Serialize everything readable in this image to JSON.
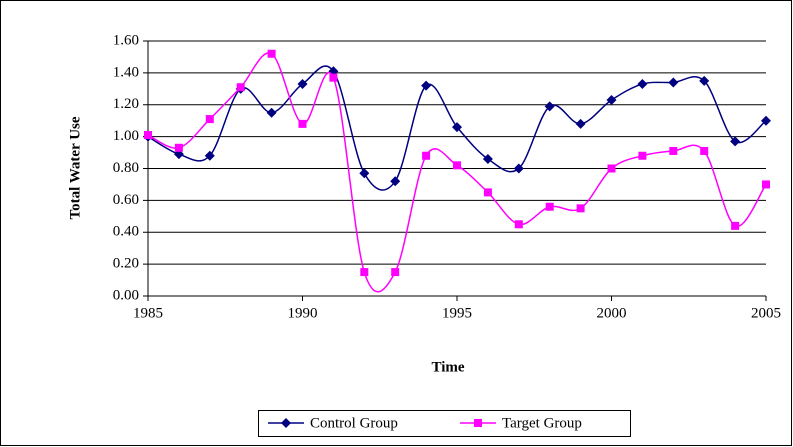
{
  "chart_data": {
    "type": "line",
    "x_label": "Time",
    "y_label": "Total Water Use",
    "x": [
      1985,
      1986,
      1987,
      1988,
      1989,
      1990,
      1991,
      1992,
      1993,
      1994,
      1995,
      1996,
      1997,
      1998,
      1999,
      2000,
      2001,
      2002,
      2003,
      2004,
      2005
    ],
    "series": [
      {
        "name": "Control Group",
        "color": "#000080",
        "marker": "diamond",
        "values": [
          1.0,
          0.89,
          0.88,
          1.3,
          1.15,
          1.33,
          1.41,
          0.77,
          0.72,
          1.32,
          1.06,
          0.86,
          0.8,
          1.19,
          1.08,
          1.23,
          1.33,
          1.34,
          1.35,
          0.97,
          1.1
        ]
      },
      {
        "name": "Target Group",
        "color": "#ff00ff",
        "marker": "square",
        "values": [
          1.01,
          0.93,
          1.11,
          1.31,
          1.52,
          1.08,
          1.37,
          0.15,
          0.15,
          0.88,
          0.82,
          0.65,
          0.45,
          0.56,
          0.55,
          0.8,
          0.88,
          0.91,
          0.91,
          0.44,
          0.7
        ]
      }
    ],
    "xlim": [
      1985,
      2005
    ],
    "xticks": [
      1985,
      1990,
      1995,
      2000,
      2005
    ],
    "ylim": [
      0,
      1.6
    ],
    "yticks": [
      {
        "value": 0,
        "label": "0.00"
      },
      {
        "value": 0.2,
        "label": "0.20"
      },
      {
        "value": 0.4,
        "label": "0.40"
      },
      {
        "value": 0.6,
        "label": "0.60"
      },
      {
        "value": 0.8,
        "label": "0.80"
      },
      {
        "value": 1.0,
        "label": "1.00"
      },
      {
        "value": 1.2,
        "label": "1.20"
      },
      {
        "value": 1.4,
        "label": "1.40"
      },
      {
        "value": 1.6,
        "label": "1.60"
      }
    ],
    "grid": true,
    "smooth": true,
    "legend": "bottom"
  }
}
